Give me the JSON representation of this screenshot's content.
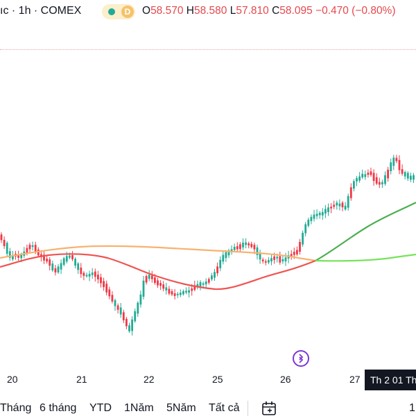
{
  "header": {
    "symbol_text": "ıc · 1h · COMEX",
    "badge": "D",
    "ohlc": [
      {
        "k": "O",
        "v": "58.570"
      },
      {
        "k": "H",
        "v": "58.580"
      },
      {
        "k": "L",
        "v": "57.810"
      },
      {
        "k": "C",
        "v": "58.095"
      }
    ],
    "change": "−0.470 (−0.80%)"
  },
  "x_axis": {
    "labels": [
      "20",
      "21",
      "22",
      "25",
      "26",
      "27"
    ],
    "tooltip": "Th 2 01 Th"
  },
  "toolbar": {
    "ranges": [
      "Tháng",
      "6 tháng",
      "YTD",
      "1Năm",
      "5Năm",
      "Tất cả"
    ],
    "right_label": "1"
  },
  "icons": {
    "goto_realtime": "scroll-to-realtime-icon",
    "calendar": "calendar-icon"
  },
  "colors": {
    "up": "#22ab94",
    "down": "#f23645",
    "ma_red": "#ef5350",
    "ma_orange": "#f7b26f",
    "ma_green": "#4caf50",
    "ma_lime": "#76e35a"
  }
}
